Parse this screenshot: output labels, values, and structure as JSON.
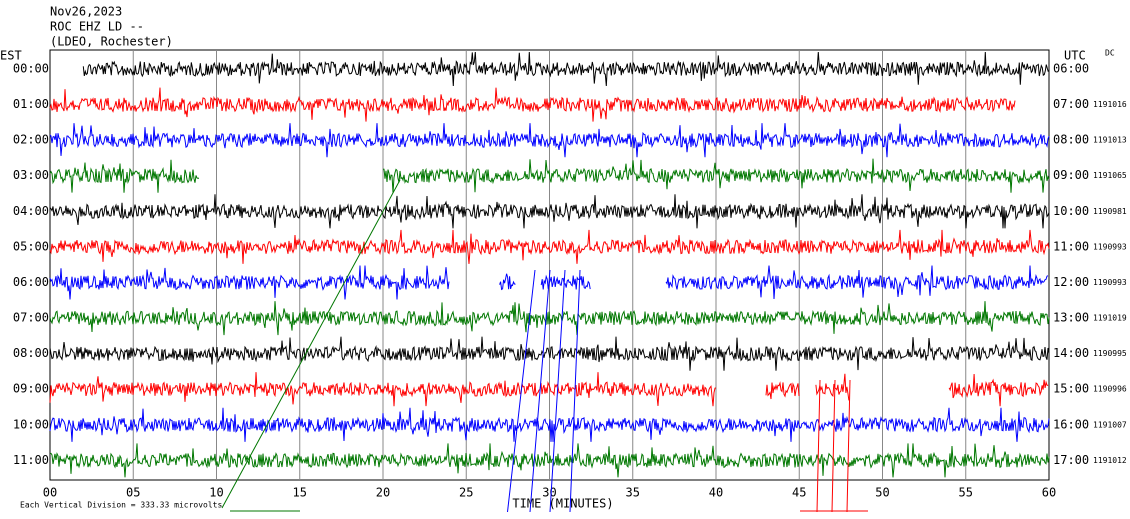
{
  "header": {
    "lines": [
      "Nov26,2023",
      "ROC EHZ LD --",
      "(LDEO, Rochester)"
    ]
  },
  "left": {
    "title": "EST",
    "labels": [
      "00:00",
      "01:00",
      "02:00",
      "03:00",
      "04:00",
      "05:00",
      "06:00",
      "07:00",
      "08:00",
      "09:00",
      "10:00",
      "11:00"
    ]
  },
  "right": {
    "title": "UTC",
    "corner": "DC",
    "labels": [
      "06:00",
      "07:00",
      "08:00",
      "09:00",
      "10:00",
      "11:00",
      "12:00",
      "13:00",
      "14:00",
      "15:00",
      "16:00",
      "17:00"
    ],
    "values": [
      null,
      "1191016",
      "1191013",
      "1191065",
      "1190981",
      "1190993",
      "1190993",
      "1191019",
      "1190995",
      "1190996",
      "1191007",
      "1191012"
    ]
  },
  "x_axis": {
    "ticks": [
      "00",
      "05",
      "10",
      "15",
      "20",
      "25",
      "30",
      "35",
      "40",
      "45",
      "50",
      "55",
      "60"
    ],
    "label": "TIME (MINUTES)"
  },
  "scale_note": "Each Vertical Division =  333.33 microvolts"
}
